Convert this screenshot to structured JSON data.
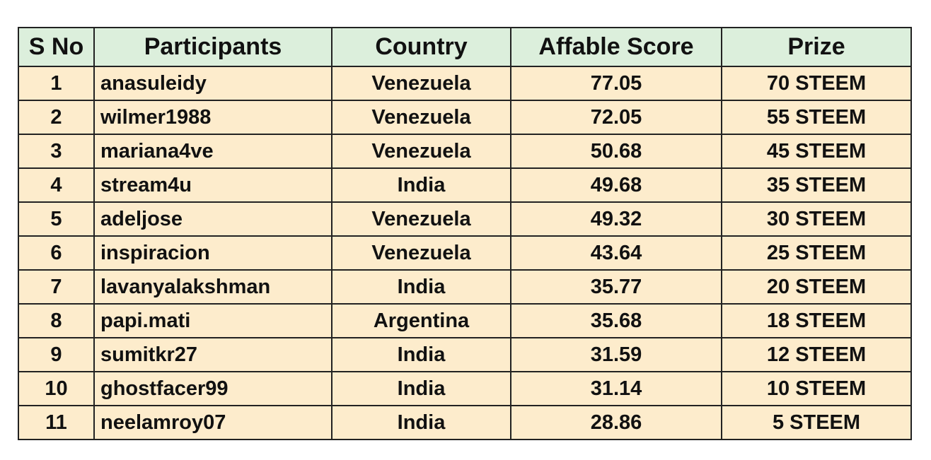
{
  "table": {
    "header": [
      "S No",
      "Participants",
      "Country",
      "Affable Score",
      "Prize"
    ],
    "rows": [
      [
        1,
        "anasuleidy",
        "Venezuela",
        77.05,
        "70 STEEM"
      ],
      [
        2,
        "wilmer1988",
        "Venezuela",
        72.05,
        "55 STEEM"
      ],
      [
        3,
        "mariana4ve",
        "Venezuela",
        50.68,
        "45 STEEM"
      ],
      [
        4,
        "stream4u",
        "India",
        49.68,
        "35 STEEM"
      ],
      [
        5,
        "adeljose",
        "Venezuela",
        49.32,
        "30 STEEM"
      ],
      [
        6,
        "inspiracion",
        "Venezuela",
        43.64,
        "25 STEEM"
      ],
      [
        7,
        "lavanyalakshman",
        "India",
        35.77,
        "20 STEEM"
      ],
      [
        8,
        "papi.mati",
        "Argentina",
        35.68,
        "18 STEEM"
      ],
      [
        9,
        "sumitkr27",
        "India",
        31.59,
        "12 STEEM"
      ],
      [
        10,
        "ghostfacer99",
        "India",
        31.14,
        "10 STEEM"
      ],
      [
        11,
        "neelamroy07",
        "India",
        28.86,
        "5 STEEM"
      ]
    ]
  }
}
